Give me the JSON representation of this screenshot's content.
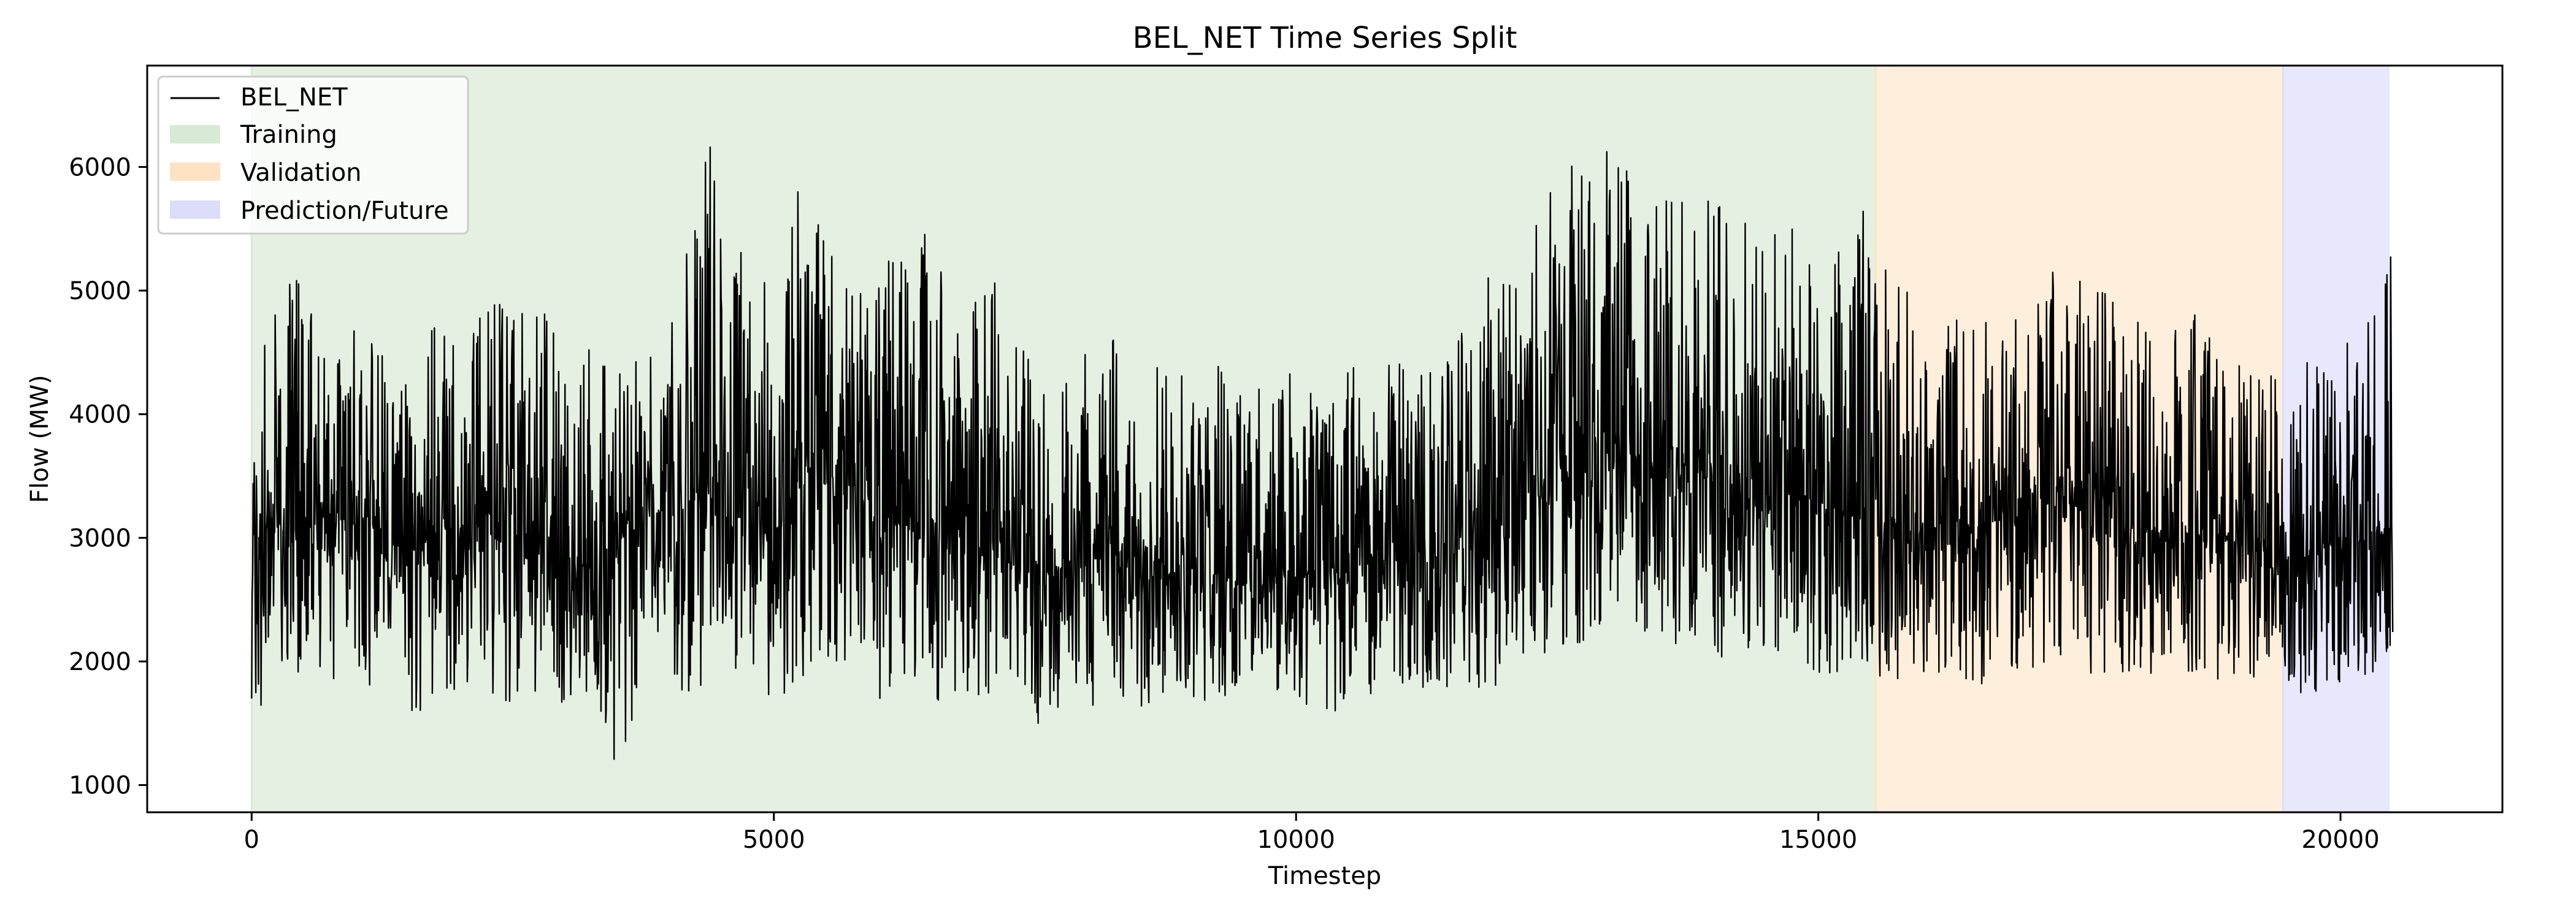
{
  "chart_data": {
    "type": "line",
    "title": "BEL_NET Time Series Split",
    "xlabel": "Timestep",
    "ylabel": "Flow (MW)",
    "xlim": [
      -1000,
      21550
    ],
    "ylim": [
      780,
      6820
    ],
    "xticks": [
      0,
      5000,
      10000,
      15000,
      20000
    ],
    "yticks": [
      1000,
      2000,
      3000,
      4000,
      5000,
      6000
    ],
    "grid": false,
    "legend_position": "upper-left",
    "series": [
      {
        "name": "BEL_NET",
        "color": "#000000",
        "x": [
          0,
          250,
          500,
          750,
          1000,
          1250,
          1500,
          1750,
          2000,
          2250,
          2500,
          2750,
          3000,
          3250,
          3500,
          3750,
          4000,
          4250,
          4500,
          4750,
          5000,
          5250,
          5500,
          5750,
          6000,
          6250,
          6500,
          6750,
          7000,
          7250,
          7500,
          7750,
          8000,
          8250,
          8500,
          8750,
          9000,
          9250,
          9500,
          9750,
          10000,
          10250,
          10500,
          10750,
          11000,
          11250,
          11500,
          11750,
          12000,
          12250,
          12500,
          12750,
          13000,
          13250,
          13500,
          13750,
          14000,
          14250,
          14500,
          14750,
          15000,
          15250,
          15500,
          15750,
          16000,
          16250,
          16500,
          16750,
          17000,
          17250,
          17500,
          17750,
          18000,
          18250,
          18500,
          18750,
          19000,
          19250,
          19500,
          19750,
          20000,
          20250,
          20500
        ],
        "y_mean": [
          3150,
          3100,
          3050,
          3200,
          3100,
          3000,
          2950,
          3050,
          3100,
          3050,
          3200,
          3050,
          2800,
          2900,
          3000,
          3150,
          3250,
          3400,
          3350,
          3100,
          3000,
          3500,
          3700,
          3400,
          3200,
          3100,
          3150,
          3050,
          2900,
          2800,
          2700,
          2750,
          2800,
          2900,
          2850,
          2800,
          2750,
          2700,
          2650,
          2650,
          2700,
          2700,
          2750,
          2850,
          2800,
          2800,
          2900,
          3050,
          3100,
          3250,
          3550,
          3600,
          3800,
          3650,
          3500,
          3600,
          3500,
          3300,
          3350,
          3400,
          3300,
          3200,
          3150,
          3000,
          3100,
          3100,
          3100,
          3200,
          3300,
          3400,
          3500,
          3300,
          3100,
          3050,
          3000,
          3100,
          3000,
          2950,
          2800,
          2900,
          3000,
          3000,
          3100
        ],
        "y_min": [
          1450,
          1800,
          1900,
          1850,
          1800,
          1750,
          1450,
          1700,
          1700,
          1700,
          1650,
          1700,
          1650,
          1650,
          1100,
          1750,
          1800,
          1700,
          1700,
          1650,
          1700,
          1800,
          1900,
          1800,
          1700,
          1700,
          1650,
          1700,
          1650,
          1600,
          1500,
          1450,
          1450,
          1600,
          1600,
          1650,
          1700,
          1650,
          1650,
          1700,
          1650,
          1600,
          1600,
          1700,
          1700,
          1700,
          1750,
          1750,
          1800,
          1900,
          2050,
          2100,
          2200,
          2200,
          2100,
          2100,
          2000,
          1950,
          1950,
          1950,
          1900,
          1900,
          1900,
          1800,
          1800,
          1850,
          1800,
          1850,
          1850,
          1900,
          1900,
          1850,
          1850,
          1800,
          1800,
          1850,
          1800,
          1800,
          1700,
          1750,
          1800,
          1800,
          2000
        ],
        "y_max": [
          4650,
          4900,
          5300,
          4600,
          4700,
          4550,
          4350,
          4800,
          4900,
          4850,
          5000,
          4900,
          4850,
          4500,
          4550,
          4600,
          4900,
          5800,
          6500,
          5300,
          5000,
          6000,
          5600,
          5000,
          5400,
          5450,
          5550,
          4900,
          5300,
          4800,
          4700,
          4500,
          4900,
          4600,
          4350,
          4500,
          4300,
          4500,
          4250,
          4200,
          4400,
          4200,
          4450,
          4550,
          4400,
          4400,
          4600,
          5150,
          5100,
          5500,
          5900,
          6300,
          6500,
          6000,
          5850,
          5700,
          5800,
          5800,
          5600,
          5500,
          5300,
          5350,
          5900,
          5100,
          4900,
          4850,
          4800,
          4800,
          4900,
          5400,
          5450,
          5200,
          4800,
          4650,
          4700,
          5000,
          4700,
          4500,
          4350,
          4500,
          4650,
          4700,
          5650
        ]
      }
    ],
    "regions": [
      {
        "name": "Training",
        "x_start": 0,
        "x_end": 15550,
        "color": "#e5f0e3",
        "legend_color": "#d7ead5"
      },
      {
        "name": "Validation",
        "x_start": 15550,
        "x_end": 19450,
        "color": "#fdefdb",
        "legend_color": "#fde3c4"
      },
      {
        "name": "Prediction/Future",
        "x_start": 19450,
        "x_end": 20470,
        "color": "#e8e8fd",
        "legend_color": "#dcdcfb"
      }
    ]
  }
}
